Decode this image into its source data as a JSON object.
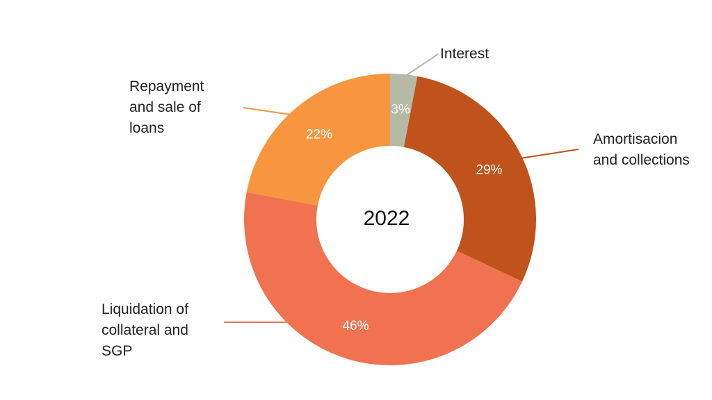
{
  "chart_data": {
    "type": "pie",
    "style": "donut",
    "center_label": "2022",
    "title": "",
    "legend": "none",
    "slices": [
      {
        "label": "Interest",
        "label_lines": [
          "Interest"
        ],
        "value": 3,
        "value_label": "3%",
        "color": "#b5b9a6"
      },
      {
        "label": "Amortisacion and collections",
        "label_lines": [
          "Amortisacion",
          "and collections"
        ],
        "value": 29,
        "value_label": "29%",
        "color": "#c0521b"
      },
      {
        "label": "Liquidation of collateral and SGP",
        "label_lines": [
          "Liquidation of",
          "collateral and",
          "SGP"
        ],
        "value": 46,
        "value_label": "46%",
        "color": "#f07250"
      },
      {
        "label": "Repayment and sale of loans",
        "label_lines": [
          "Repayment",
          "and sale of",
          "loans"
        ],
        "value": 22,
        "value_label": "22%",
        "color": "#f7963f"
      }
    ]
  }
}
